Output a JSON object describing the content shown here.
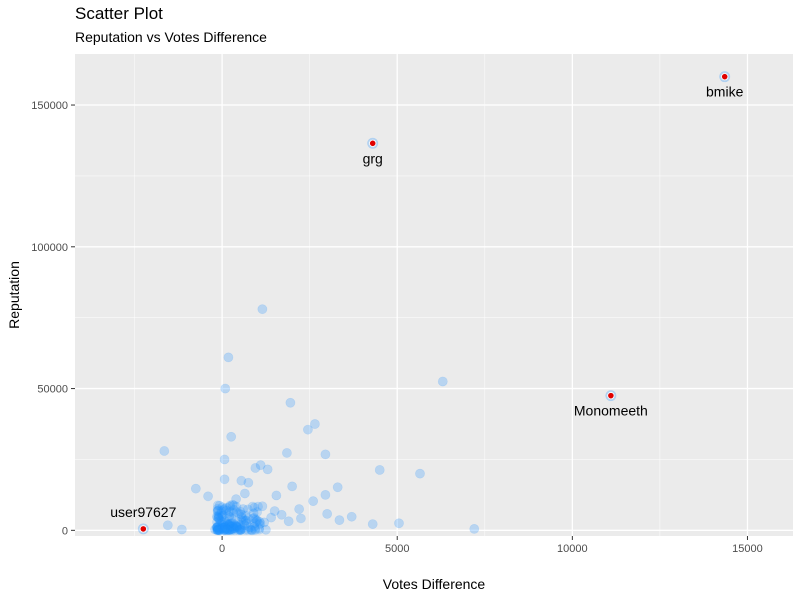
{
  "title": "Scatter Plot",
  "subtitle": "Reputation vs Votes Difference",
  "chart_data": {
    "type": "scatter",
    "title": "Scatter Plot",
    "subtitle": "Reputation vs Votes Difference",
    "xlabel": "Votes Difference",
    "ylabel": "Reputation",
    "xlim": [
      -4200,
      16300
    ],
    "ylim": [
      -2000,
      168000
    ],
    "xticks": [
      0,
      5000,
      10000,
      15000
    ],
    "xtick_labels": [
      "0",
      "5000",
      "10000",
      "15000"
    ],
    "yticks": [
      0,
      50000,
      100000,
      150000
    ],
    "ytick_labels": [
      "0",
      "50000",
      "100000",
      "150000"
    ],
    "grid": true,
    "colors": {
      "points": "#1e90ff",
      "highlight": "#e00000",
      "panel": "#ebebeb",
      "grid": "#ffffff"
    },
    "series": [
      {
        "points": [
          [
            1150,
            78000
          ],
          [
            180,
            61000
          ],
          [
            90,
            50000
          ],
          [
            6300,
            52500
          ],
          [
            1950,
            45000
          ],
          [
            2650,
            37500
          ],
          [
            2450,
            35500
          ],
          [
            260,
            33000
          ],
          [
            -1650,
            28000
          ],
          [
            1850,
            27300
          ],
          [
            2950,
            26800
          ],
          [
            70,
            25000
          ],
          [
            1100,
            23000
          ],
          [
            950,
            22000
          ],
          [
            1300,
            21500
          ],
          [
            4500,
            21300
          ],
          [
            5650,
            20000
          ],
          [
            70,
            18000
          ],
          [
            550,
            17500
          ],
          [
            750,
            16800
          ],
          [
            -750,
            14700
          ],
          [
            2000,
            15500
          ],
          [
            3300,
            15200
          ],
          [
            1550,
            12300
          ],
          [
            -400,
            12000
          ],
          [
            2950,
            12500
          ],
          [
            2600,
            10300
          ],
          [
            2200,
            7500
          ],
          [
            1700,
            5500
          ],
          [
            3000,
            5800
          ],
          [
            3700,
            4800
          ],
          [
            3350,
            3600
          ],
          [
            2250,
            4200
          ],
          [
            1900,
            3200
          ],
          [
            4300,
            2200
          ],
          [
            5050,
            2500
          ],
          [
            7200,
            500
          ],
          [
            -1550,
            1800
          ],
          [
            -1150,
            300
          ],
          [
            1250,
            200
          ],
          [
            -200,
            300
          ],
          [
            300,
            9000
          ],
          [
            600,
            7500
          ],
          [
            900,
            6000
          ],
          [
            1400,
            4500
          ],
          [
            200,
            5000
          ],
          [
            450,
            3000
          ],
          [
            100,
            1500
          ],
          [
            700,
            2500
          ],
          [
            350,
            800
          ],
          [
            50,
            2000
          ],
          [
            150,
            500
          ],
          [
            250,
            1200
          ],
          [
            800,
            1000
          ],
          [
            500,
            400
          ],
          [
            1000,
            3500
          ],
          [
            120,
            7000
          ],
          [
            400,
            11000
          ],
          [
            650,
            13000
          ],
          [
            1150,
            8500
          ],
          [
            1500,
            6800
          ],
          [
            100,
            400
          ],
          [
            200,
            1800
          ],
          [
            300,
            2600
          ],
          [
            80,
            3200
          ],
          [
            550,
            5600
          ],
          [
            880,
            4200
          ],
          [
            1200,
            2800
          ],
          [
            30,
            900
          ],
          [
            420,
            6400
          ]
        ]
      }
    ],
    "annotations": [
      {
        "label": "bmike",
        "x": 14350,
        "y": 160000
      },
      {
        "label": "grg",
        "x": 4300,
        "y": 136500
      },
      {
        "label": "Monomeeth",
        "x": 11100,
        "y": 47500
      },
      {
        "label": "user97627",
        "x": -2250,
        "y": 500
      }
    ]
  }
}
